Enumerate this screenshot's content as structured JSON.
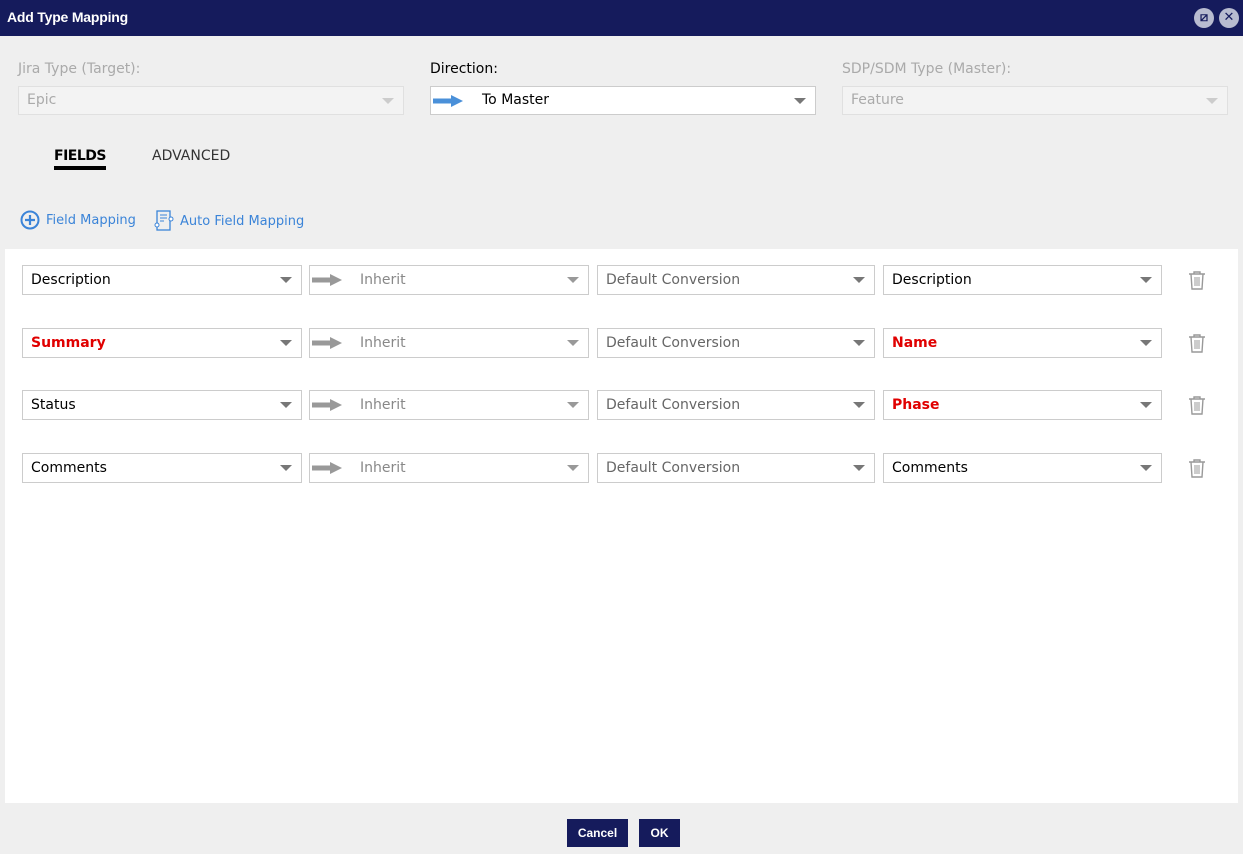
{
  "window": {
    "title": "Add Type Mapping"
  },
  "header": {
    "jira_type_label": "Jira Type (Target):",
    "jira_type_value": "Epic",
    "direction_label": "Direction:",
    "direction_value": "To Master",
    "sdp_type_label": "SDP/SDM Type (Master):",
    "sdp_type_value": "Feature"
  },
  "tabs": [
    {
      "label": "FIELDS",
      "active": true
    },
    {
      "label": "ADVANCED",
      "active": false
    }
  ],
  "actions": {
    "field_mapping": "Field Mapping",
    "auto_field_mapping": "Auto Field Mapping"
  },
  "rows": [
    {
      "source": "Description",
      "source_required": false,
      "direction": "Inherit",
      "conversion": "Default Conversion",
      "target": "Description",
      "target_required": false
    },
    {
      "source": "Summary",
      "source_required": true,
      "direction": "Inherit",
      "conversion": "Default Conversion",
      "target": "Name",
      "target_required": true
    },
    {
      "source": "Status",
      "source_required": false,
      "direction": "Inherit",
      "conversion": "Default Conversion",
      "target": "Phase",
      "target_required": true
    },
    {
      "source": "Comments",
      "source_required": false,
      "direction": "Inherit",
      "conversion": "Default Conversion",
      "target": "Comments",
      "target_required": false
    }
  ],
  "footer": {
    "cancel": "Cancel",
    "ok": "OK"
  },
  "colors": {
    "titlebar": "#151b5c",
    "link": "#3b84d8",
    "required": "#e00000",
    "arrow_direction": "#4a90d9"
  }
}
